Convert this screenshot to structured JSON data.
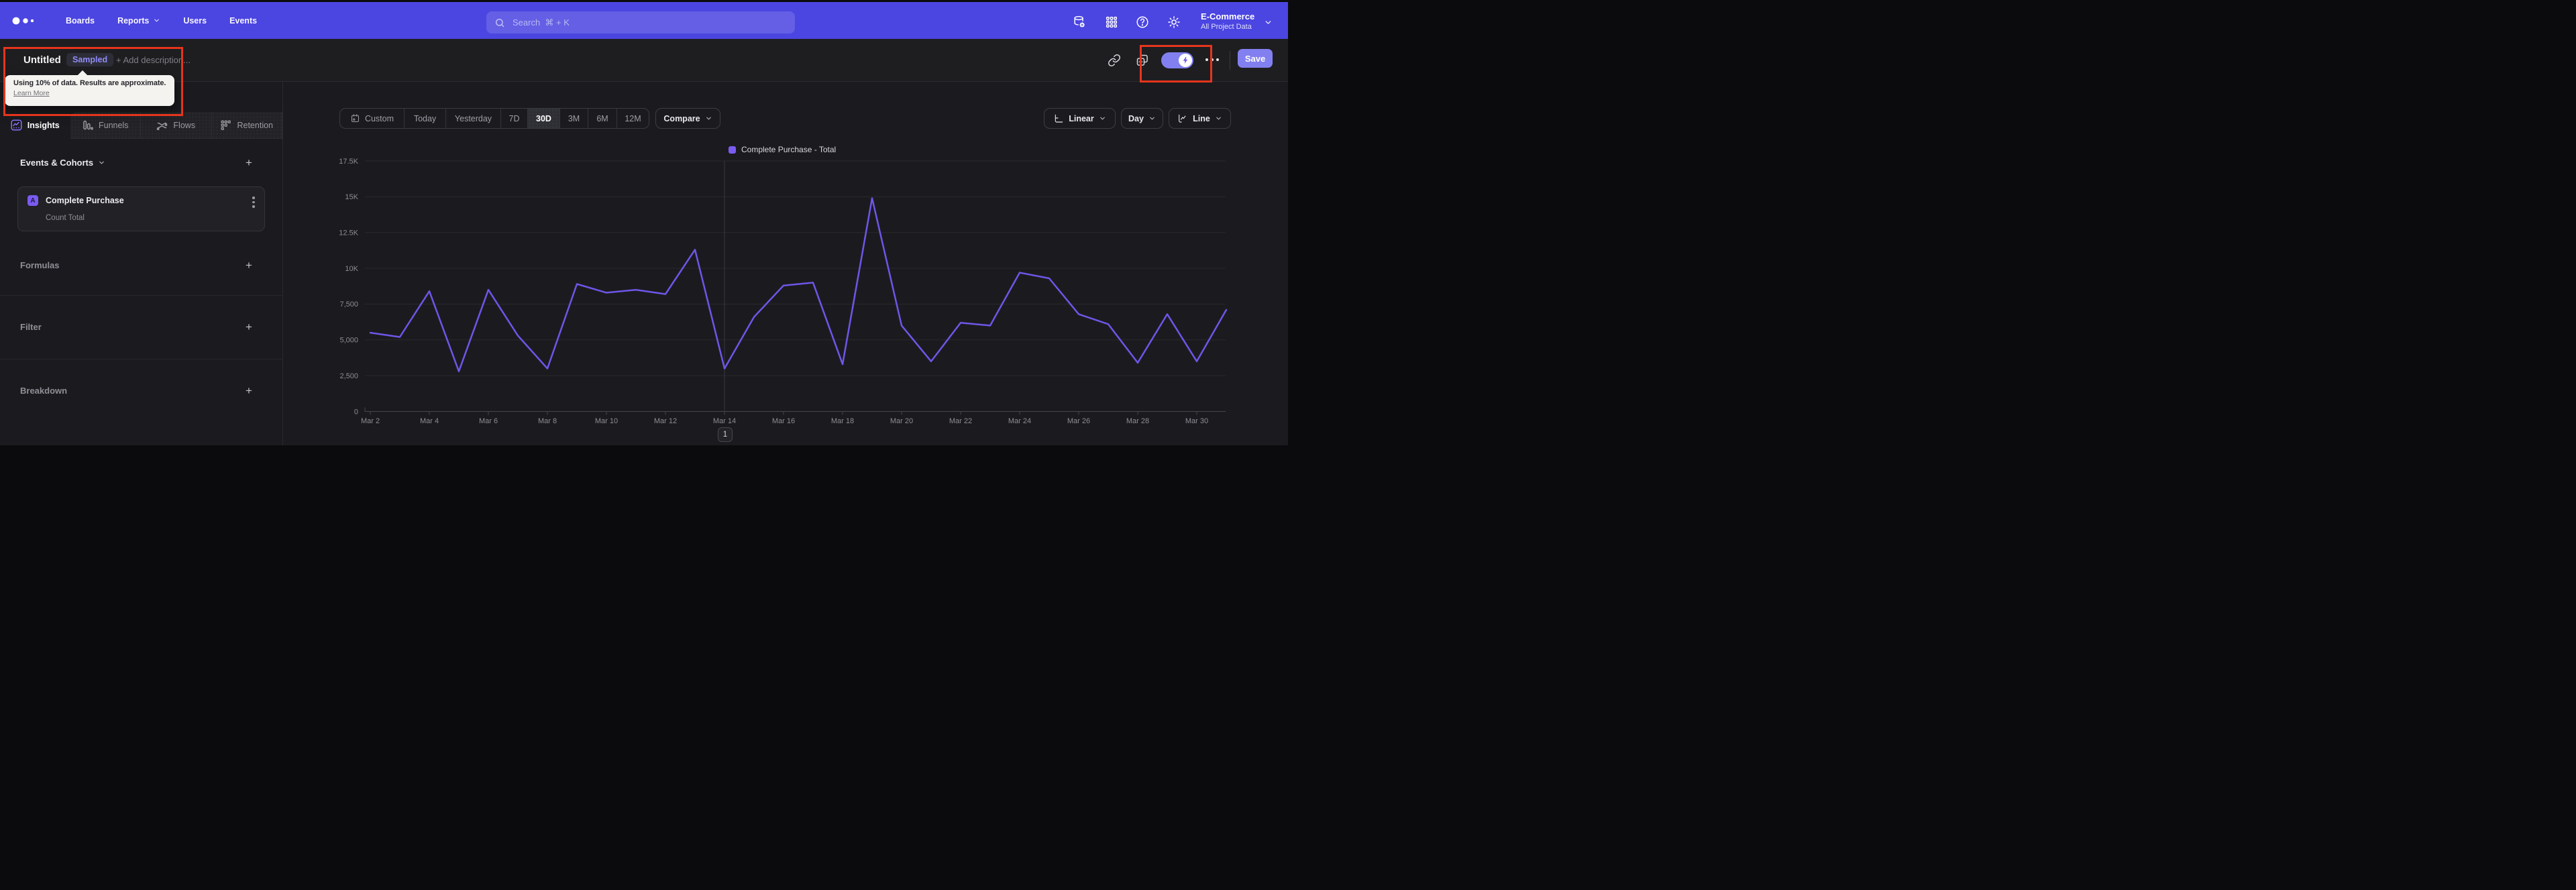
{
  "colors": {
    "nav_purple": "#4b45e1",
    "accent": "#7b5cf0",
    "line": "#6e56e8",
    "annotation_red": "#e6351d",
    "background": "#1b1b1f"
  },
  "nav": {
    "items": [
      "Boards",
      "Reports",
      "Users",
      "Events"
    ],
    "search_placeholder": "Search  ⌘ + K",
    "project_name": "E-Commerce",
    "project_scope": "All Project Data"
  },
  "titlebar": {
    "title": "Untitled",
    "badge": "Sampled",
    "add_description": "+ Add description...",
    "save_label": "Save"
  },
  "tooltip": {
    "message": "Using 10% of data. Results are approximate.",
    "link": "Learn More"
  },
  "tabs": [
    {
      "label": "Insights"
    },
    {
      "label": "Funnels"
    },
    {
      "label": "Flows"
    },
    {
      "label": "Retention"
    }
  ],
  "sidebar": {
    "events_header": "Events & Cohorts",
    "event": {
      "letter": "A",
      "name": "Complete Purchase",
      "metric": "Count Total"
    },
    "sections": [
      "Formulas",
      "Filter",
      "Breakdown"
    ]
  },
  "controls": {
    "range_options": [
      "Custom",
      "Today",
      "Yesterday",
      "7D",
      "30D",
      "3M",
      "6M",
      "12M"
    ],
    "active_range": "30D",
    "compare_label": "Compare",
    "scale_label": "Linear",
    "interval_label": "Day",
    "chart_type_label": "Line"
  },
  "pagination": "1",
  "chart_data": {
    "type": "line",
    "legend": [
      {
        "label": "Complete Purchase - Total",
        "color": "#7b5cf0"
      }
    ],
    "x": [
      "Mar 2",
      "Mar 3",
      "Mar 4",
      "Mar 5",
      "Mar 6",
      "Mar 7",
      "Mar 8",
      "Mar 9",
      "Mar 10",
      "Mar 11",
      "Mar 12",
      "Mar 13",
      "Mar 14",
      "Mar 15",
      "Mar 16",
      "Mar 17",
      "Mar 18",
      "Mar 19",
      "Mar 20",
      "Mar 21",
      "Mar 22",
      "Mar 23",
      "Mar 24",
      "Mar 25",
      "Mar 26",
      "Mar 27",
      "Mar 28",
      "Mar 29",
      "Mar 30",
      "Mar 31"
    ],
    "series": [
      {
        "name": "Complete Purchase - Total",
        "values": [
          5500,
          5200,
          8400,
          2800,
          8500,
          5300,
          3000,
          8900,
          8300,
          8500,
          8200,
          11300,
          3000,
          6600,
          8800,
          9000,
          3300,
          14900,
          6000,
          3500,
          6200,
          6000,
          9700,
          9300,
          6800,
          6100,
          3400,
          6800,
          3500,
          7100
        ]
      }
    ],
    "ylim": [
      0,
      17500
    ],
    "y_tick_values": [
      0,
      2500,
      5000,
      7500,
      10000,
      12500,
      15000,
      17500
    ],
    "y_ticks": [
      "0",
      "2,500",
      "5,000",
      "7,500",
      "10K",
      "12.5K",
      "15K",
      "17.5K"
    ],
    "x_label_every": 2,
    "vline_index": 12,
    "grid": "horizontal"
  }
}
